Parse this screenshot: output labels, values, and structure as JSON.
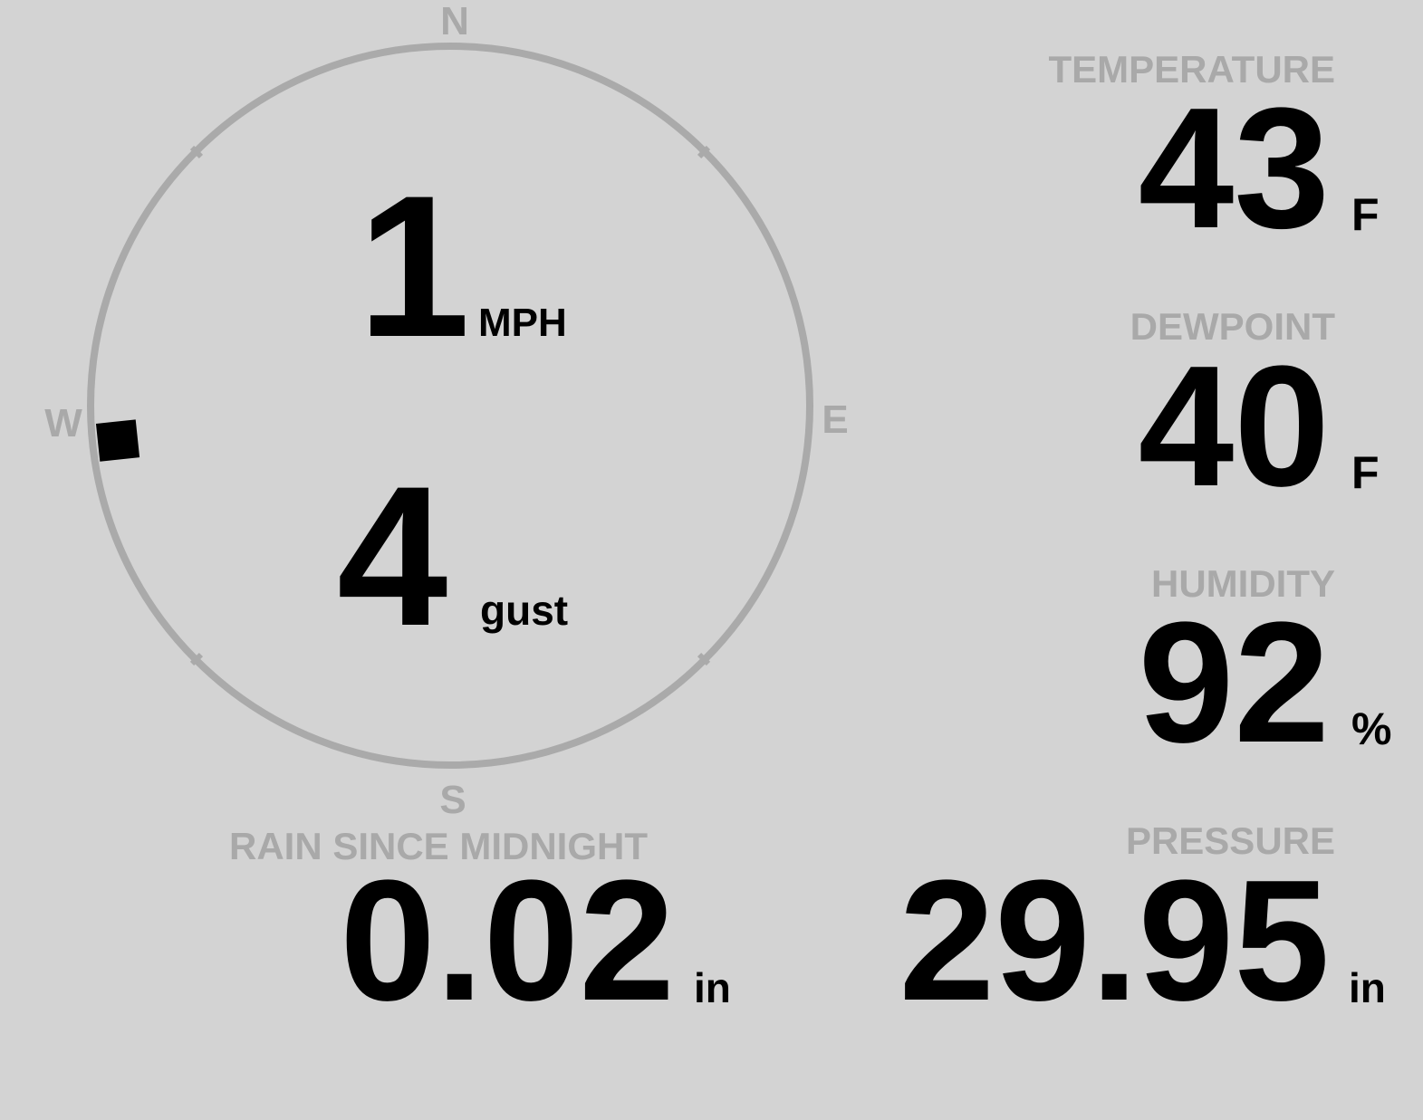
{
  "wind": {
    "speed": "1",
    "speed_unit": "MPH",
    "gust": "4",
    "gust_unit": "gust",
    "direction_deg": 264,
    "compass": {
      "north": "N",
      "south": "S",
      "east": "E",
      "west": "W"
    }
  },
  "temperature": {
    "label": "TEMPERATURE",
    "value": "43",
    "unit": "F"
  },
  "dewpoint": {
    "label": "DEWPOINT",
    "value": "40",
    "unit": "F"
  },
  "humidity": {
    "label": "HUMIDITY",
    "value": "92",
    "unit": "%"
  },
  "rain": {
    "label": "RAIN SINCE MIDNIGHT",
    "value": "0.02",
    "unit": "in"
  },
  "pressure": {
    "label": "PRESSURE",
    "value": "29.95",
    "unit": "in"
  },
  "colors": {
    "background": "#d3d3d3",
    "label": "#a9a9a9",
    "value": "#000000"
  }
}
